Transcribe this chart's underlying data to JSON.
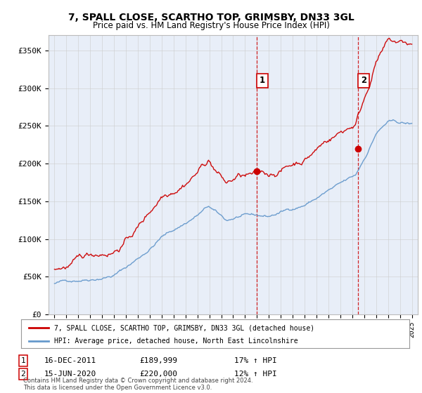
{
  "title": "7, SPALL CLOSE, SCARTHO TOP, GRIMSBY, DN33 3GL",
  "subtitle": "Price paid vs. HM Land Registry's House Price Index (HPI)",
  "legend_line1": "7, SPALL CLOSE, SCARTHO TOP, GRIMSBY, DN33 3GL (detached house)",
  "legend_line2": "HPI: Average price, detached house, North East Lincolnshire",
  "annotation1_date": "16-DEC-2011",
  "annotation1_price": "£189,999",
  "annotation1_hpi": "17% ↑ HPI",
  "annotation2_date": "15-JUN-2020",
  "annotation2_price": "£220,000",
  "annotation2_hpi": "12% ↑ HPI",
  "footer": "Contains HM Land Registry data © Crown copyright and database right 2024.\nThis data is licensed under the Open Government Licence v3.0.",
  "ylim": [
    0,
    370000
  ],
  "yticks": [
    0,
    50000,
    100000,
    150000,
    200000,
    250000,
    300000,
    350000
  ],
  "ytick_labels": [
    "£0",
    "£50K",
    "£100K",
    "£150K",
    "£200K",
    "£250K",
    "£300K",
    "£350K"
  ],
  "sale1_year": 2011.96,
  "sale1_price": 189999,
  "sale2_year": 2020.46,
  "sale2_price": 220000,
  "vline1_year": 2011.96,
  "vline2_year": 2020.46,
  "red_color": "#cc0000",
  "blue_color": "#6699cc",
  "background_color": "#ffffff",
  "plot_bg_color": "#e8eef8",
  "grid_color": "#cccccc",
  "vline_color": "#cc0000"
}
